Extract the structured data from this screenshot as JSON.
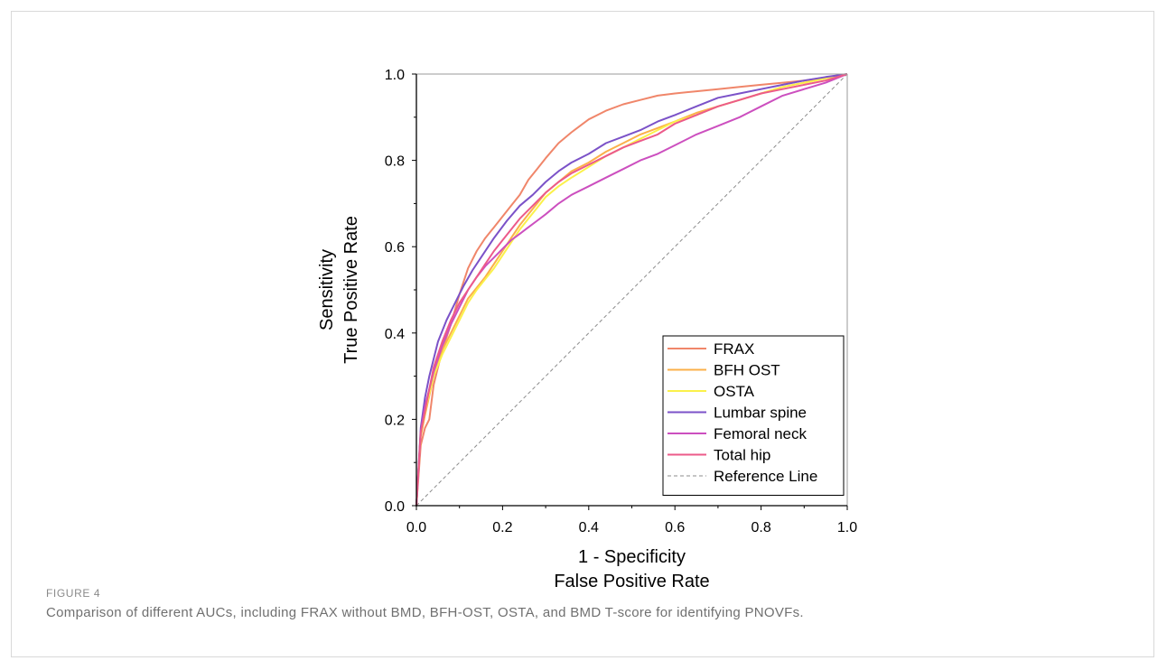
{
  "figure": {
    "label": "FIGURE 4",
    "caption": "Comparison of different AUCs, including FRAX without BMD, BFH-OST, OSTA, and BMD T-score for identifying PNOVFs."
  },
  "chart_data": {
    "type": "line",
    "title": "",
    "xlabel": [
      "1 - Specificity",
      "False Positive Rate"
    ],
    "ylabel": [
      "Sensitivity",
      "True Positive Rate"
    ],
    "xlim": [
      0,
      1
    ],
    "ylim": [
      0,
      1
    ],
    "x_ticks": [
      "0.0",
      "0.2",
      "0.4",
      "0.6",
      "0.8",
      "1.0"
    ],
    "y_ticks": [
      "0.0",
      "0.2",
      "0.4",
      "0.6",
      "0.8",
      "1.0"
    ],
    "grid": false,
    "legend_position": "bottom-right",
    "series": [
      {
        "name": "FRAX",
        "color": "#f0866a",
        "x": [
          0,
          0.01,
          0.02,
          0.03,
          0.04,
          0.06,
          0.08,
          0.1,
          0.12,
          0.14,
          0.16,
          0.18,
          0.2,
          0.22,
          0.24,
          0.26,
          0.28,
          0.3,
          0.33,
          0.36,
          0.4,
          0.44,
          0.48,
          0.52,
          0.56,
          0.6,
          0.65,
          0.7,
          0.75,
          0.8,
          0.85,
          0.9,
          0.95,
          1.0
        ],
        "y": [
          0,
          0.14,
          0.18,
          0.2,
          0.28,
          0.36,
          0.42,
          0.49,
          0.55,
          0.59,
          0.62,
          0.645,
          0.67,
          0.695,
          0.72,
          0.755,
          0.78,
          0.805,
          0.84,
          0.865,
          0.895,
          0.915,
          0.93,
          0.94,
          0.95,
          0.955,
          0.96,
          0.965,
          0.97,
          0.975,
          0.98,
          0.985,
          0.992,
          1.0
        ]
      },
      {
        "name": "BFH OST",
        "color": "#fbb04a",
        "x": [
          0,
          0.01,
          0.02,
          0.04,
          0.06,
          0.08,
          0.1,
          0.12,
          0.14,
          0.16,
          0.18,
          0.2,
          0.22,
          0.24,
          0.26,
          0.28,
          0.3,
          0.33,
          0.36,
          0.4,
          0.44,
          0.48,
          0.52,
          0.56,
          0.6,
          0.65,
          0.7,
          0.75,
          0.8,
          0.85,
          0.9,
          0.95,
          1.0
        ],
        "y": [
          0,
          0.16,
          0.21,
          0.3,
          0.36,
          0.4,
          0.44,
          0.48,
          0.505,
          0.53,
          0.56,
          0.59,
          0.62,
          0.65,
          0.675,
          0.7,
          0.725,
          0.75,
          0.775,
          0.795,
          0.82,
          0.84,
          0.86,
          0.875,
          0.89,
          0.91,
          0.925,
          0.94,
          0.955,
          0.97,
          0.98,
          0.99,
          1.0
        ]
      },
      {
        "name": "OSTA",
        "color": "#fbf14a",
        "x": [
          0,
          0.01,
          0.02,
          0.04,
          0.06,
          0.08,
          0.1,
          0.12,
          0.14,
          0.16,
          0.18,
          0.2,
          0.22,
          0.24,
          0.26,
          0.28,
          0.3,
          0.33,
          0.36,
          0.4,
          0.44,
          0.48,
          0.52,
          0.56,
          0.6,
          0.65,
          0.7,
          0.75,
          0.8,
          0.85,
          0.9,
          0.95,
          1.0
        ],
        "y": [
          0,
          0.17,
          0.22,
          0.3,
          0.35,
          0.39,
          0.43,
          0.47,
          0.5,
          0.525,
          0.55,
          0.58,
          0.61,
          0.64,
          0.665,
          0.69,
          0.715,
          0.74,
          0.76,
          0.785,
          0.81,
          0.83,
          0.85,
          0.87,
          0.89,
          0.905,
          0.925,
          0.94,
          0.955,
          0.97,
          0.98,
          0.99,
          1.0
        ]
      },
      {
        "name": "Lumbar spine",
        "color": "#7b52c8",
        "x": [
          0,
          0.01,
          0.02,
          0.03,
          0.05,
          0.07,
          0.09,
          0.11,
          0.13,
          0.15,
          0.18,
          0.21,
          0.24,
          0.27,
          0.3,
          0.33,
          0.36,
          0.4,
          0.44,
          0.48,
          0.52,
          0.56,
          0.6,
          0.65,
          0.7,
          0.75,
          0.8,
          0.85,
          0.9,
          0.95,
          1.0
        ],
        "y": [
          0,
          0.18,
          0.25,
          0.3,
          0.38,
          0.43,
          0.47,
          0.51,
          0.545,
          0.575,
          0.62,
          0.66,
          0.695,
          0.72,
          0.75,
          0.775,
          0.795,
          0.815,
          0.84,
          0.855,
          0.87,
          0.89,
          0.905,
          0.925,
          0.945,
          0.955,
          0.965,
          0.975,
          0.985,
          0.993,
          1.0
        ]
      },
      {
        "name": "Femoral neck",
        "color": "#cc4fbf",
        "x": [
          0,
          0.01,
          0.02,
          0.04,
          0.06,
          0.08,
          0.1,
          0.12,
          0.14,
          0.16,
          0.18,
          0.2,
          0.22,
          0.24,
          0.26,
          0.28,
          0.3,
          0.33,
          0.36,
          0.4,
          0.44,
          0.48,
          0.52,
          0.56,
          0.6,
          0.65,
          0.7,
          0.75,
          0.8,
          0.85,
          0.9,
          0.95,
          1.0
        ],
        "y": [
          0,
          0.17,
          0.23,
          0.31,
          0.37,
          0.42,
          0.46,
          0.5,
          0.53,
          0.555,
          0.575,
          0.595,
          0.615,
          0.63,
          0.645,
          0.66,
          0.675,
          0.7,
          0.72,
          0.74,
          0.76,
          0.78,
          0.8,
          0.815,
          0.835,
          0.86,
          0.88,
          0.9,
          0.925,
          0.95,
          0.965,
          0.98,
          1.0
        ]
      },
      {
        "name": "Total hip",
        "color": "#ec5a8a",
        "x": [
          0,
          0.01,
          0.02,
          0.04,
          0.06,
          0.08,
          0.1,
          0.12,
          0.14,
          0.16,
          0.18,
          0.2,
          0.22,
          0.24,
          0.26,
          0.28,
          0.3,
          0.33,
          0.36,
          0.4,
          0.44,
          0.48,
          0.52,
          0.56,
          0.6,
          0.65,
          0.7,
          0.75,
          0.8,
          0.85,
          0.9,
          0.95,
          1.0
        ],
        "y": [
          0,
          0.17,
          0.22,
          0.32,
          0.38,
          0.43,
          0.47,
          0.5,
          0.53,
          0.56,
          0.59,
          0.615,
          0.64,
          0.665,
          0.685,
          0.705,
          0.725,
          0.75,
          0.77,
          0.79,
          0.81,
          0.83,
          0.845,
          0.86,
          0.885,
          0.905,
          0.925,
          0.94,
          0.955,
          0.965,
          0.975,
          0.985,
          1.0
        ]
      },
      {
        "name": "Reference Line",
        "color": "#8c8c8c",
        "dashed": true,
        "x": [
          0,
          1
        ],
        "y": [
          0,
          1
        ]
      }
    ]
  }
}
